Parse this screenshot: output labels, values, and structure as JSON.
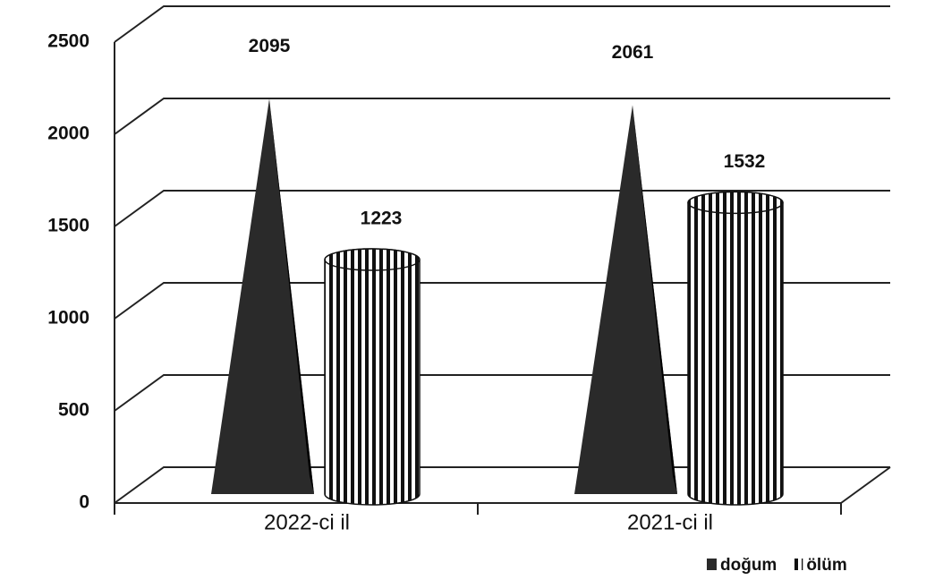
{
  "chart_data": {
    "type": "bar3d",
    "categories": [
      "2022-ci il",
      "2021-ci il"
    ],
    "series": [
      {
        "name": "doğum",
        "color": "#2a2a2a",
        "shape": "cone",
        "values": [
          2095,
          2061
        ]
      },
      {
        "name": "ölüm",
        "color": "#111111",
        "shape": "cylinder",
        "values": [
          1223,
          1532
        ]
      }
    ],
    "ylim": [
      0,
      2500
    ],
    "yticks": [
      0,
      500,
      1000,
      1500,
      2000,
      2500
    ],
    "grid": true
  }
}
